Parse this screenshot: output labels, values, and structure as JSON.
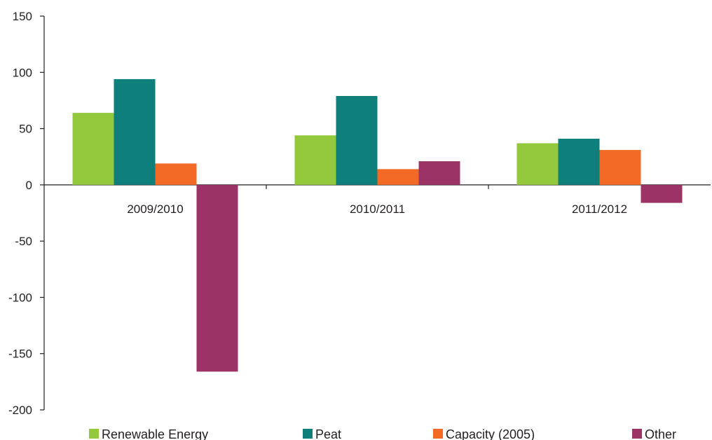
{
  "chart_data": {
    "type": "bar",
    "title": "",
    "xlabel": "",
    "ylabel": "",
    "categories": [
      "2009/2010",
      "2010/2011",
      "2011/2012"
    ],
    "series": [
      {
        "name": "Renewable Energy",
        "color": "#95c93d",
        "values": [
          64,
          44,
          37
        ]
      },
      {
        "name": "Peat",
        "color": "#0e7f7b",
        "values": [
          94,
          79,
          41
        ]
      },
      {
        "name": "Capacity (2005)",
        "color": "#f26a25",
        "values": [
          19,
          14,
          31
        ]
      },
      {
        "name": "Other",
        "color": "#9b3366",
        "values": [
          -166,
          21,
          -16
        ]
      }
    ],
    "ylim": [
      -200,
      150
    ],
    "yticks": [
      150,
      100,
      50,
      0,
      -50,
      -100,
      -150,
      -200
    ],
    "ytick_labels": [
      "150",
      "100",
      "50",
      "0",
      "-50",
      "-100",
      "-150",
      "-200"
    ],
    "grid": false,
    "legend_position": "bottom"
  }
}
